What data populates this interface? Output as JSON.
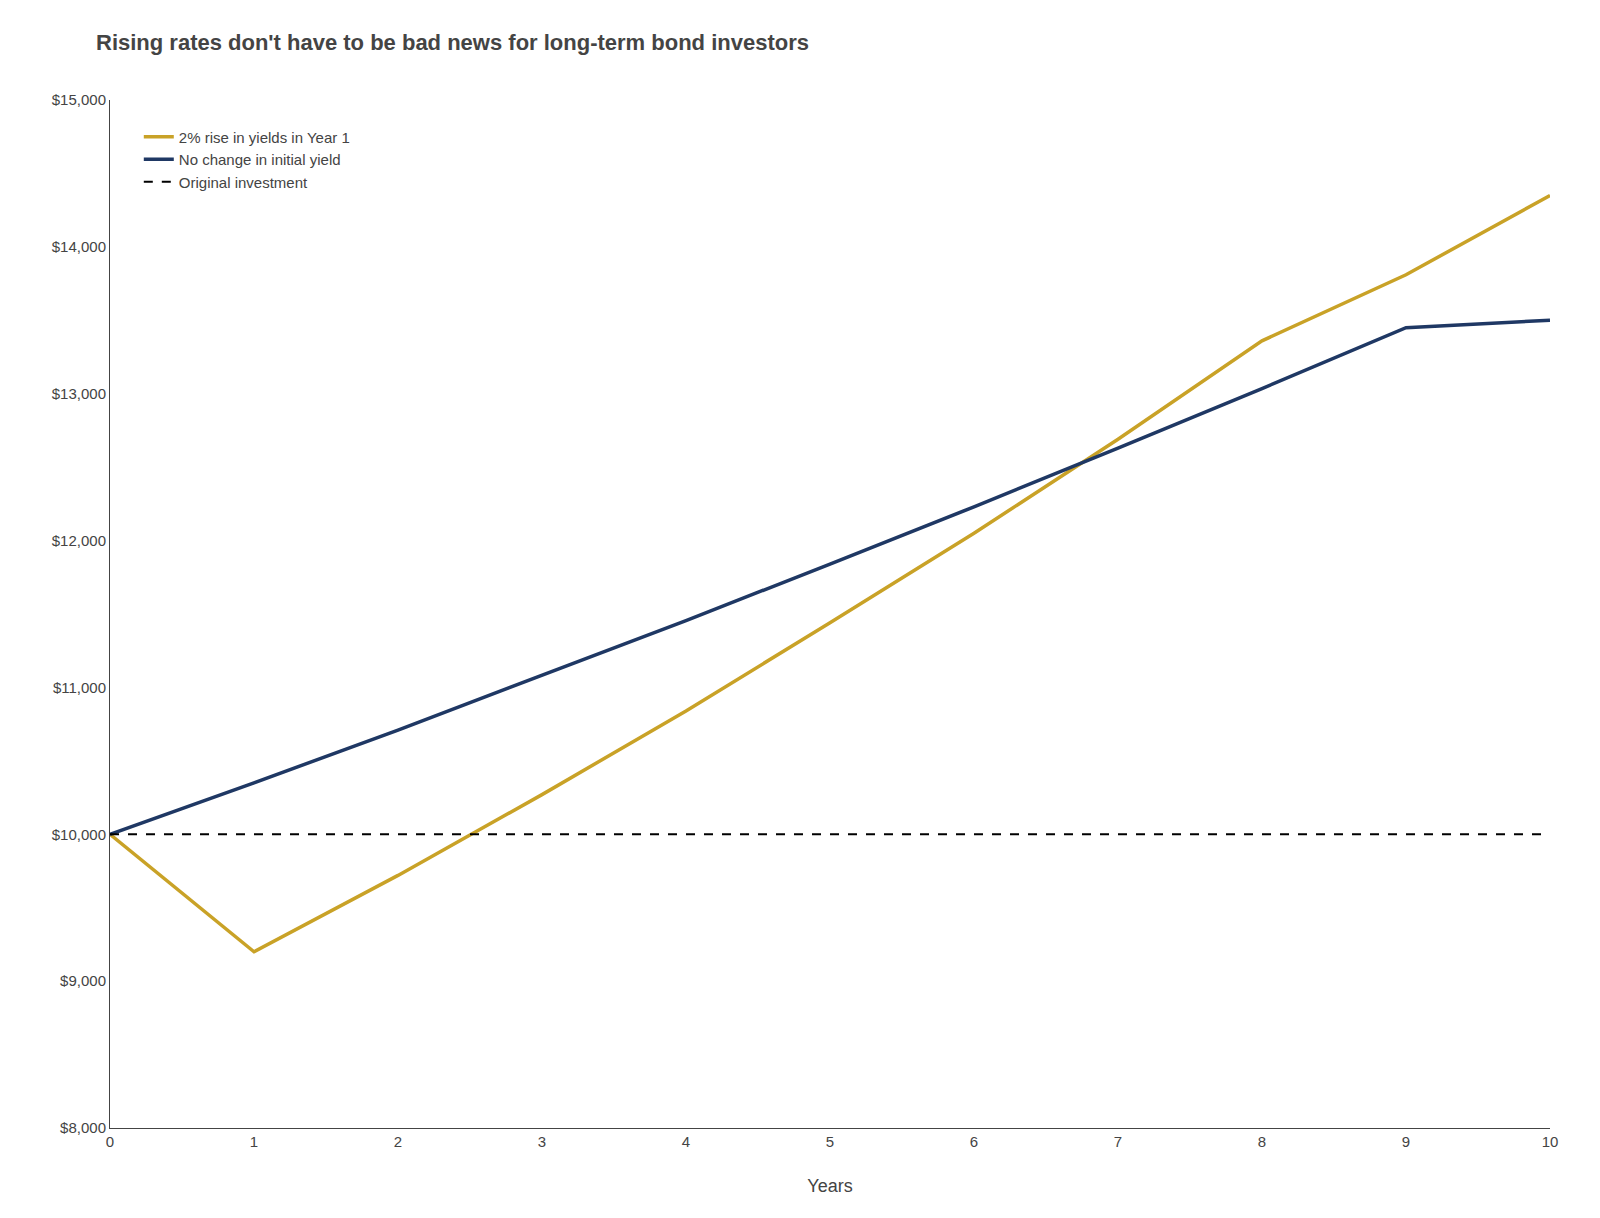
{
  "chart_data": {
    "type": "line",
    "title": "Rising rates don't have to be bad news for long-term bond investors",
    "xlabel": "Years",
    "series": [
      {
        "name": "2% rise in yields in Year 1",
        "color": "#C9A227",
        "line_style": "solid",
        "x": [
          0,
          1,
          2,
          3,
          4,
          5,
          6,
          7,
          8,
          9,
          10
        ],
        "values": [
          10000,
          9200,
          9720,
          10270,
          10840,
          11440,
          12050,
          12690,
          13360,
          13810,
          14350
        ]
      },
      {
        "name": "No change in initial yield",
        "color": "#1F3864",
        "line_style": "solid",
        "x": [
          0,
          1,
          2,
          3,
          4,
          5,
          6,
          7,
          8,
          9,
          10
        ],
        "values": [
          10000,
          10350,
          10710,
          11080,
          11455,
          11840,
          12230,
          12630,
          13035,
          13450,
          13500
        ]
      },
      {
        "name": "Original investment",
        "color": "#000000",
        "line_style": "dashed",
        "x": [
          0,
          10
        ],
        "values": [
          10000,
          10000
        ]
      }
    ],
    "xlim": [
      0,
      10
    ],
    "ylim": [
      8000,
      15000
    ],
    "xticks": [
      0,
      1,
      2,
      3,
      4,
      5,
      6,
      7,
      8,
      9,
      10
    ],
    "yticks": [
      {
        "value": 8000,
        "label": "$8,000"
      },
      {
        "value": 9000,
        "label": "$9,000"
      },
      {
        "value": 10000,
        "label": "$10,000"
      },
      {
        "value": 11000,
        "label": "$11,000"
      },
      {
        "value": 12000,
        "label": "$12,000"
      },
      {
        "value": 13000,
        "label": "$13,000"
      },
      {
        "value": 14000,
        "label": "$14,000"
      },
      {
        "value": 15000,
        "label": "$15,000"
      }
    ],
    "grid": false,
    "legend": "upper left"
  }
}
